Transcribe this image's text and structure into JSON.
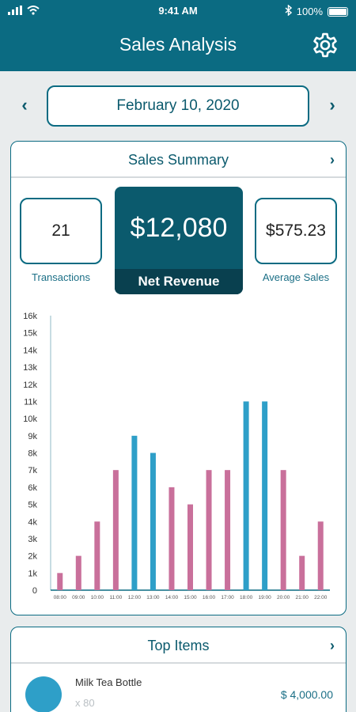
{
  "status": {
    "time": "9:41 AM",
    "battery": "100%"
  },
  "header": {
    "title": "Sales Analysis",
    "settings_icon": "gear-icon"
  },
  "date_nav": {
    "date": "February 10, 2020",
    "prev_icon": "chevron-left-icon",
    "next_icon": "chevron-right-icon"
  },
  "summary": {
    "title": "Sales Summary",
    "transactions_value": "21",
    "transactions_label": "Transactions",
    "net_revenue_value": "$12,080",
    "net_revenue_label": "Net Revenue",
    "average_value": "$575.23",
    "average_label": "Average Sales"
  },
  "chart_data": {
    "type": "bar",
    "categories": [
      "08:00",
      "09:00",
      "10:00",
      "11:00",
      "12:00",
      "13:00",
      "14:00",
      "15:00",
      "16:00",
      "17:00",
      "18:00",
      "19:00",
      "20:00",
      "21:00",
      "22:00"
    ],
    "values": [
      1000,
      2000,
      4000,
      7000,
      9000,
      8000,
      6000,
      5000,
      7000,
      7000,
      11000,
      11000,
      7000,
      2000,
      4000
    ],
    "highlight": [
      false,
      false,
      false,
      false,
      true,
      true,
      false,
      false,
      false,
      false,
      true,
      true,
      false,
      false,
      false
    ],
    "yticks": [
      "0",
      "1k",
      "2k",
      "3k",
      "4k",
      "5k",
      "6k",
      "7k",
      "8k",
      "9k",
      "10k",
      "11k",
      "12k",
      "13k",
      "14k",
      "15k",
      "16k"
    ],
    "ylim": [
      0,
      16000
    ],
    "colors": {
      "normal": "#c9709b",
      "highlight": "#2e9fc8"
    }
  },
  "top_items": {
    "title": "Top Items",
    "items": [
      {
        "name": "Milk Tea Bottle",
        "qty": "x 80",
        "price": "$ 4,000.00"
      }
    ]
  }
}
